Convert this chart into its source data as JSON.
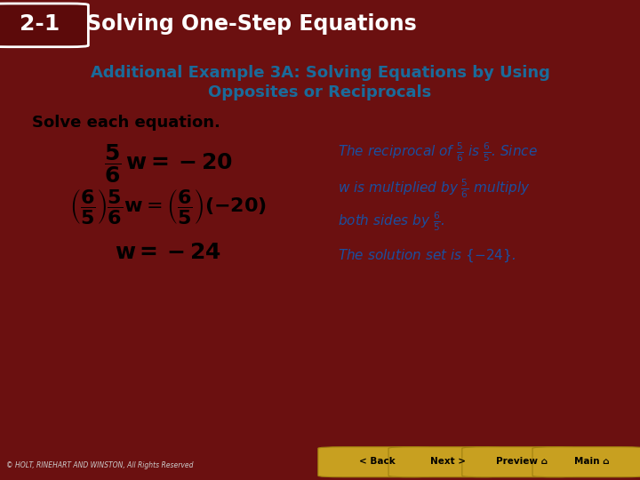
{
  "fig_w": 7.2,
  "fig_h": 5.4,
  "header_bg": "#5c0a0a",
  "body_bg": "#ffffff",
  "outer_bg": "#6b1010",
  "sidebar_color": "#7a1212",
  "subtitle_color": "#1a6b9a",
  "right_text_color": "#1a4fa0",
  "math_black": "#000000",
  "red_color": "#cc2222",
  "footer_bg": "#5c0a0a",
  "header_text_21": "2-1",
  "header_text_title": "Solving One-Step Equations",
  "subtitle_line1": "Additional Example 3A: Solving Equations by Using",
  "subtitle_line2": "Opposites or Reciprocals",
  "solve_label": "Solve each equation.",
  "btn_labels": [
    "< Back",
    "Next >",
    "Preview",
    "Main"
  ],
  "btn_colors": [
    "#c8a020",
    "#c8a020",
    "#c8a020",
    "#c8a020"
  ],
  "footer_note": "© HOLT, RINEHART AND WINSTON, All Rights Reserved"
}
